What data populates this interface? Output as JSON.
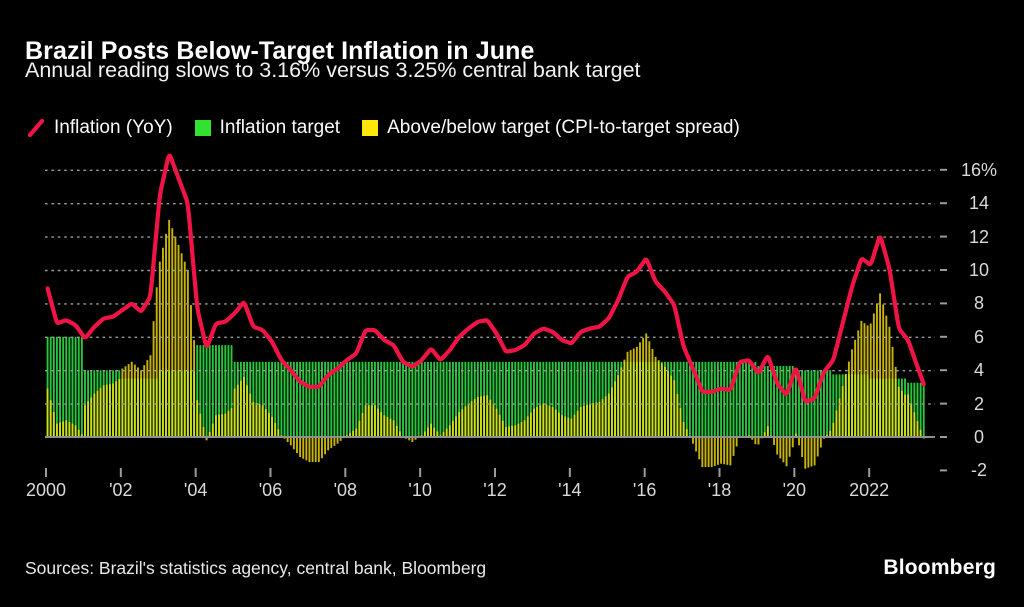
{
  "header": {
    "title": "Brazil Posts Below-Target Inflation in June",
    "subtitle": "Annual reading slows to 3.16% versus 3.25% central bank target"
  },
  "legend": {
    "items": [
      {
        "label": "Inflation (YoY)",
        "marker": "red-slash-line"
      },
      {
        "label": "Inflation target",
        "marker": "green-square"
      },
      {
        "label": "Above/below target (CPI-to-target spread)",
        "marker": "yellow-square"
      }
    ]
  },
  "colors": {
    "red": "#f01446",
    "green": "#28c63c",
    "green_legend": "#31e331",
    "yellow": "#ffe708",
    "grid": "#9b9b9b",
    "zero_line": "#909090",
    "tick": "#9b9b9b",
    "text": "#ffffff",
    "muted_text": "#d9d9d9",
    "background": "#000000"
  },
  "footer": {
    "sources": "Sources: Brazil's statistics agency, central bank, Bloomberg",
    "brand": "Bloomberg"
  },
  "chart_data": {
    "type": "line+bar",
    "title": "Brazil Posts Below-Target Inflation in June",
    "subtitle": "Annual reading slows to 3.16% versus 3.25% central bank target",
    "y_unit": "%",
    "ylim": [
      -2.8,
      17.6
    ],
    "x_range_years": [
      2000.0,
      2023.5
    ],
    "grid_values": [
      16,
      14,
      12,
      10,
      8,
      6,
      4,
      2
    ],
    "y_tick_values": [
      16,
      14,
      12,
      10,
      8,
      6,
      4,
      2,
      0,
      -2
    ],
    "y_tick_labels": [
      "16%",
      "14",
      "12",
      "10",
      "8",
      "6",
      "4",
      "2",
      "0",
      "-2"
    ],
    "x_tick_years": [
      2000,
      2002,
      2004,
      2006,
      2008,
      2010,
      2012,
      2014,
      2016,
      2018,
      2020,
      2022
    ],
    "x_tick_labels": [
      "2000",
      "'02",
      "'04",
      "'06",
      "'08",
      "'10",
      "'12",
      "'14",
      "'16",
      "'18",
      "'20",
      "2022"
    ],
    "legend_position": "top",
    "grid": "dashed-horizontal",
    "series": [
      {
        "name": "Inflation (YoY)",
        "type": "line",
        "color_key": "red",
        "start": "2000-01",
        "step_months": 3,
        "values": [
          8.9,
          6.8,
          7.0,
          6.7,
          5.9,
          6.6,
          7.1,
          7.2,
          7.6,
          8.0,
          7.5,
          8.4,
          14.5,
          17.0,
          15.5,
          14.0,
          7.7,
          5.3,
          6.8,
          6.9,
          7.4,
          8.1,
          6.6,
          6.4,
          5.7,
          4.6,
          4.0,
          3.3,
          3.0,
          3.0,
          3.7,
          4.1,
          4.6,
          5.0,
          6.4,
          6.4,
          5.8,
          5.5,
          4.5,
          4.2,
          4.6,
          5.3,
          4.6,
          5.2,
          6.0,
          6.5,
          6.9,
          7.0,
          6.2,
          5.1,
          5.2,
          5.5,
          6.2,
          6.5,
          6.3,
          5.8,
          5.6,
          6.3,
          6.5,
          6.6,
          7.1,
          8.2,
          9.6,
          9.9,
          10.7,
          9.3,
          8.7,
          7.9,
          5.4,
          4.1,
          2.7,
          2.7,
          2.9,
          2.8,
          4.5,
          4.6,
          3.8,
          4.9,
          3.2,
          2.5,
          4.2,
          2.1,
          2.3,
          3.9,
          4.6,
          6.8,
          9.0,
          10.7,
          10.3,
          12.1,
          10.1,
          6.5,
          5.8,
          4.2
        ],
        "final_point": {
          "date": "2023-06",
          "value": 3.16
        }
      },
      {
        "name": "Inflation target",
        "type": "bar",
        "color_key": "green",
        "start_year": 2000,
        "annual_values": [
          6.0,
          4.0,
          3.5,
          4.0,
          5.5,
          4.5,
          4.5,
          4.5,
          4.5,
          4.5,
          4.5,
          4.5,
          4.5,
          4.5,
          4.5,
          4.5,
          4.5,
          4.5,
          4.5,
          4.25,
          4.0,
          3.75,
          3.5,
          3.25
        ]
      },
      {
        "name": "Above/below target (CPI-to-target spread)",
        "type": "bar",
        "color_key": "yellow",
        "derived": "inflation_minus_target"
      }
    ]
  }
}
